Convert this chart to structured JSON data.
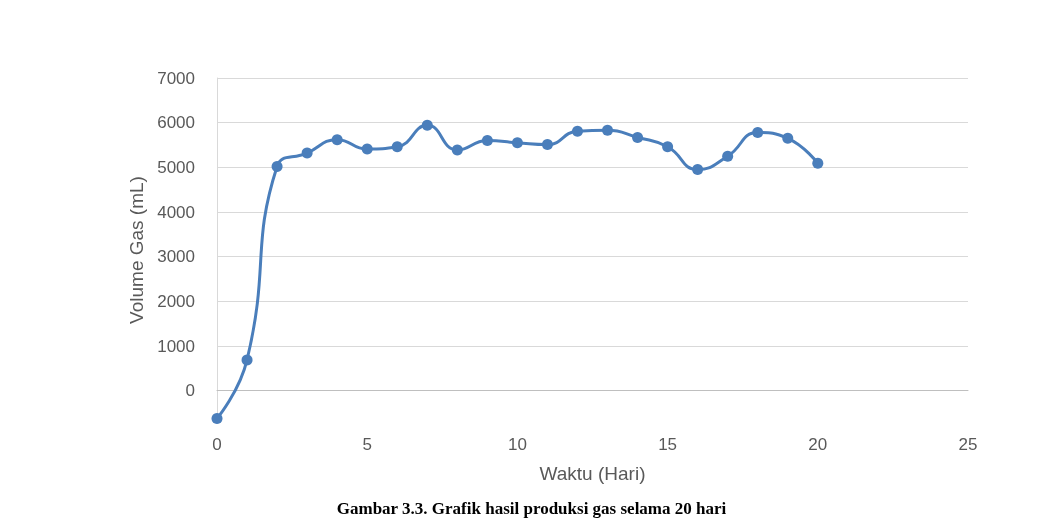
{
  "chart_data": {
    "type": "line",
    "xlabel": "Waktu (Hari)",
    "ylabel": "Volume Gas (mL)",
    "annotations": [
      "Gambar 3.3. Grafik hasil produksi gas selama 20 hari"
    ],
    "x": [
      0,
      1,
      2,
      3,
      4,
      5,
      6,
      7,
      8,
      9,
      10,
      11,
      12,
      13,
      14,
      15,
      16,
      17,
      18,
      19,
      20
    ],
    "series": [
      {
        "color": "#4a7ebb",
        "values": [
          -620,
          690,
          5020,
          5320,
          5620,
          5410,
          5460,
          5940,
          5390,
          5600,
          5550,
          5510,
          5810,
          5830,
          5670,
          5460,
          4950,
          5250,
          5780,
          5650,
          5090
        ]
      }
    ],
    "xlim": [
      0,
      25
    ],
    "xticks": [
      0,
      5,
      10,
      15,
      20,
      25
    ],
    "ylim": [
      -700,
      7000
    ],
    "yticks": [
      0,
      1000,
      2000,
      3000,
      4000,
      5000,
      6000,
      7000
    ],
    "grid": "y",
    "marker": "circle",
    "line_style": "solid"
  }
}
